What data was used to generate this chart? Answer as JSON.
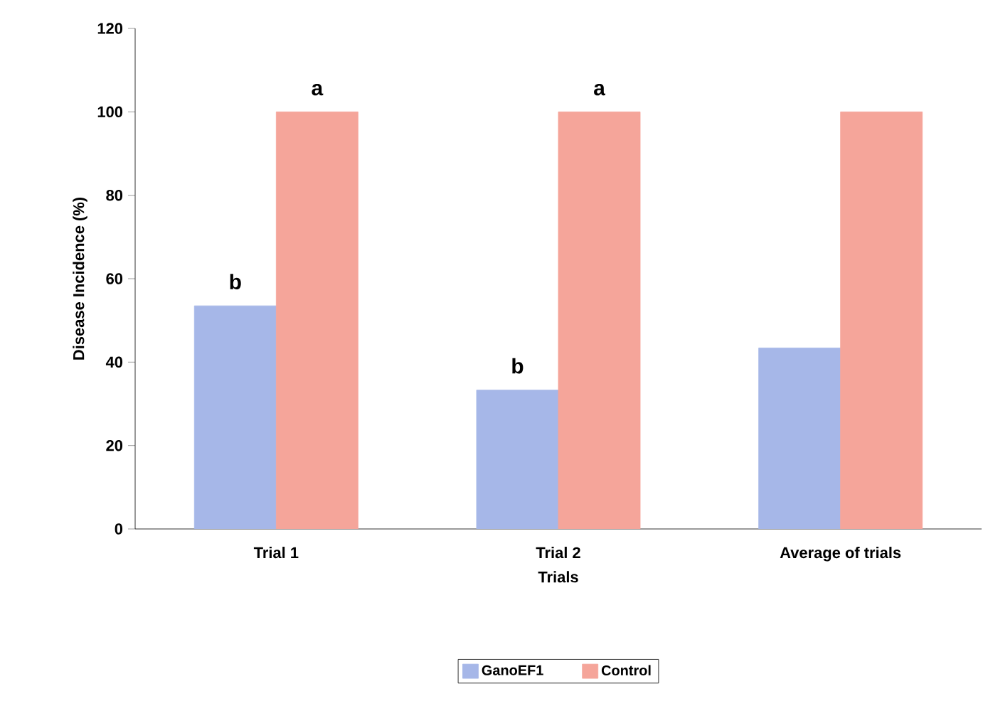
{
  "chart_data": {
    "type": "bar",
    "xlabel": "Trials",
    "ylabel": "Disease Incidence (%)",
    "categories": [
      "Trial 1",
      "Trial 2",
      "Average of trials"
    ],
    "series": [
      {
        "name": "GanoEF1",
        "color": "#a6b7e8",
        "values": [
          53.5,
          33.3,
          43.4
        ],
        "value_labels": [
          "b",
          "b",
          null
        ]
      },
      {
        "name": "Control",
        "color": "#f5a59a",
        "values": [
          100,
          100,
          100
        ],
        "value_labels": [
          "a",
          "a",
          null
        ]
      }
    ],
    "ylim": [
      0,
      120
    ],
    "yticks": [
      0,
      20,
      40,
      60,
      80,
      100,
      120
    ],
    "grid": false,
    "legend": "bottom"
  }
}
